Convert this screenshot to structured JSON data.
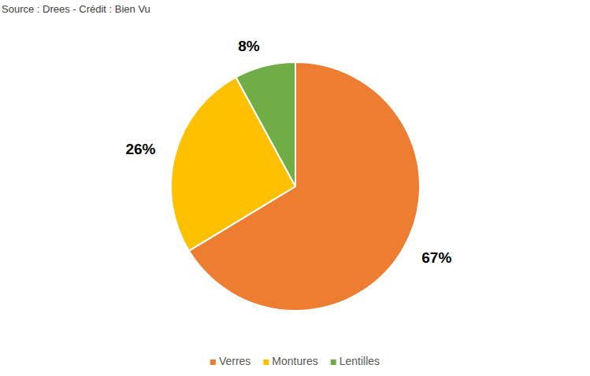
{
  "chart_data": {
    "type": "pie",
    "title": "Source : Drees - Crédit : Bien Vu",
    "categories": [
      "Verres",
      "Montures",
      "Lentilles"
    ],
    "values": [
      67,
      26,
      8
    ],
    "value_labels": [
      "67%",
      "26%",
      "8%"
    ],
    "colors": [
      "#ed7d31",
      "#ffc000",
      "#70ad47"
    ],
    "data_labels": true,
    "legend": "bottom"
  }
}
